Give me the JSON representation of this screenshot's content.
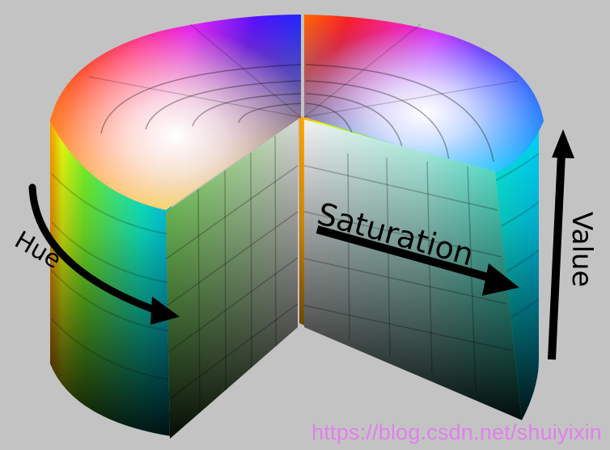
{
  "diagram": {
    "labels": {
      "hue": "Hue",
      "saturation": "Saturation",
      "value": "Value"
    },
    "colors": {
      "background": "#c3c3c3",
      "arrow": "#000000",
      "watermark": "#e27fee"
    }
  },
  "watermark": {
    "text": "https://blog.csdn.net/shuiyixin"
  }
}
